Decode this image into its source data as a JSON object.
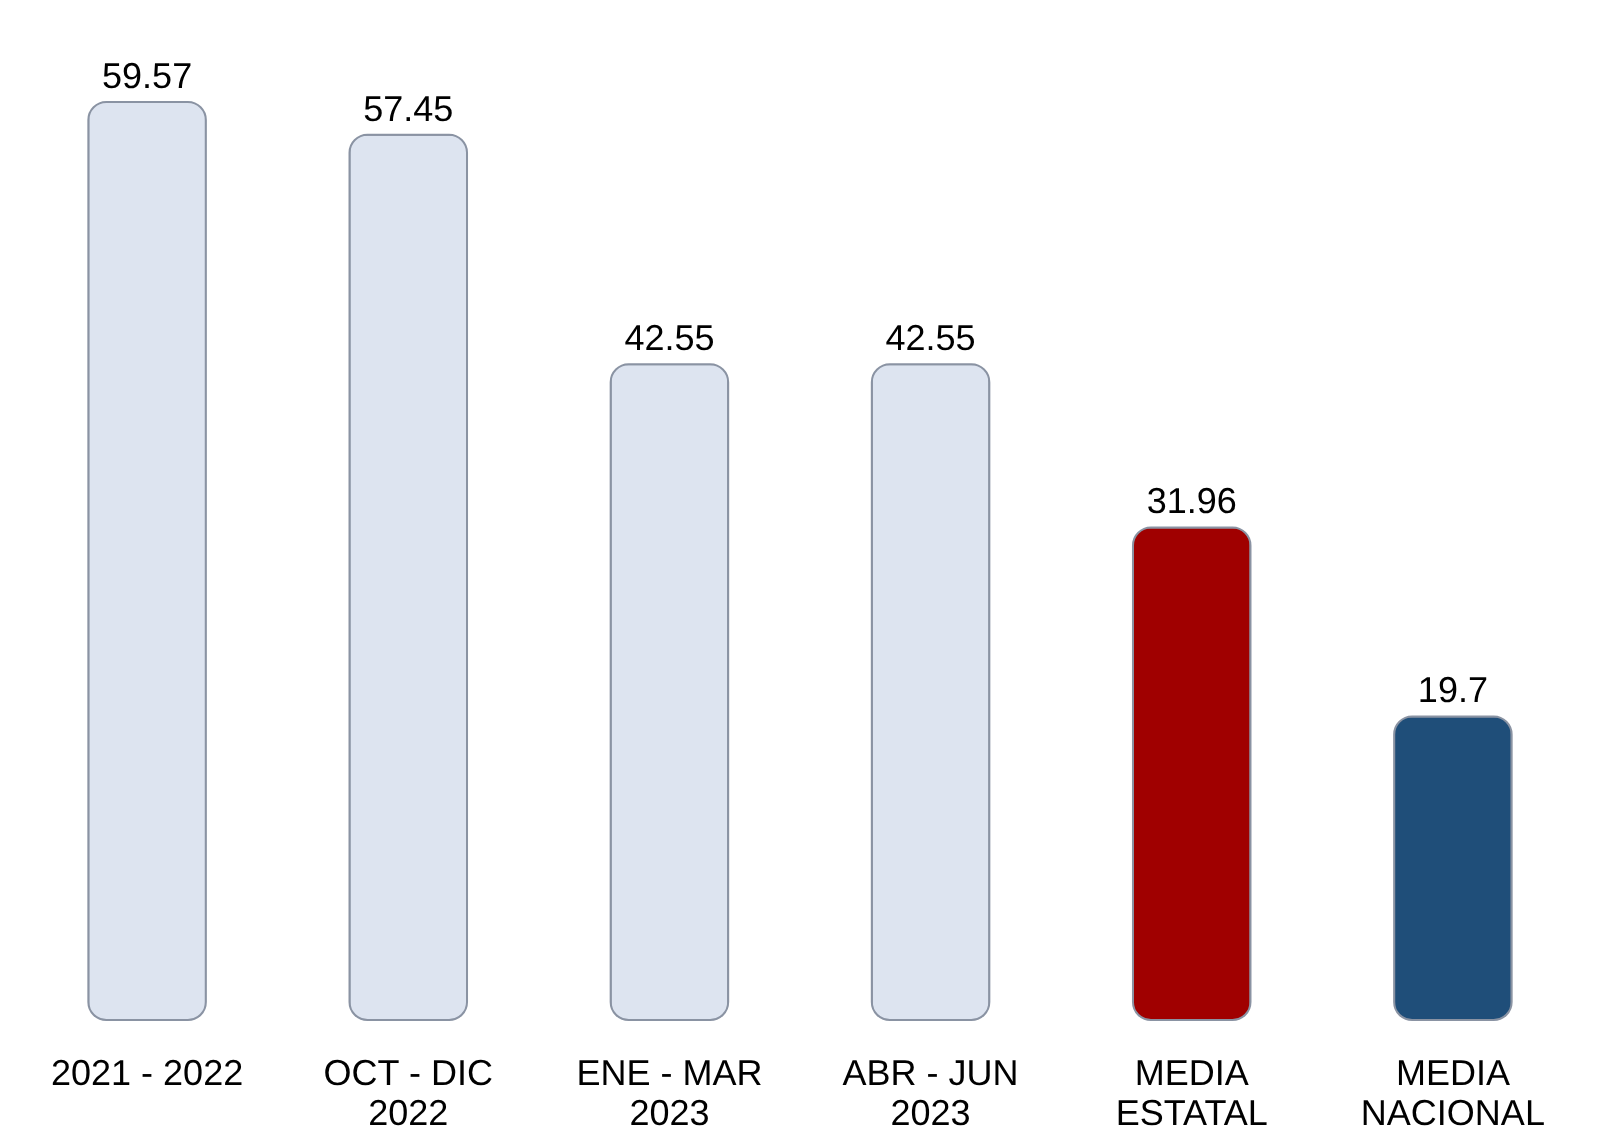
{
  "chart_data": {
    "type": "bar",
    "categories": [
      "2021 - 2022",
      "OCT - DIC\n2022",
      "ENE - MAR\n2023",
      "ABR - JUN\n2023",
      "MEDIA\nESTATAL",
      "MEDIA\nNACIONAL"
    ],
    "values": [
      59.57,
      57.45,
      42.55,
      42.55,
      31.96,
      19.7
    ],
    "colors": [
      "#dde4f0",
      "#dde4f0",
      "#dde4f0",
      "#dde4f0",
      "#a00000",
      "#1f4e79"
    ],
    "data_labels": true
  }
}
